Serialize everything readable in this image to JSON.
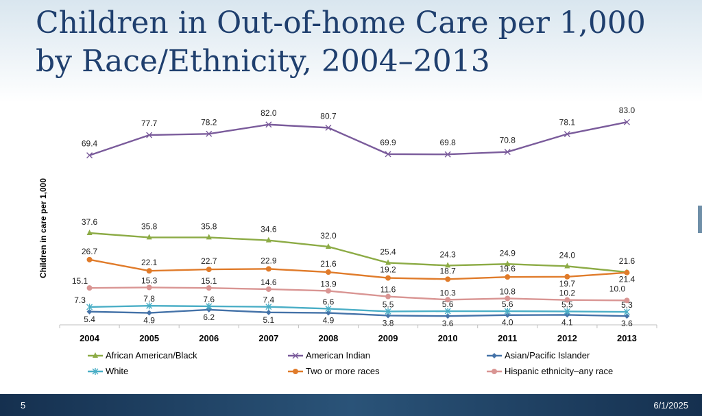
{
  "slide": {
    "title_line1": "Children in Out-of-home Care per 1,000",
    "title_line2": "by Race/Ethnicity, 2004–2013",
    "page_number": "5",
    "date": "6/1/2025"
  },
  "chart_data": {
    "type": "line",
    "title": "Children in Out-of-home Care per 1,000 by Race/Ethnicity, 2004–2013",
    "xlabel": "",
    "ylabel": "Children in care per 1,000",
    "ylim": [
      0,
      90
    ],
    "grid": false,
    "legend_position": "bottom",
    "categories": [
      "2004",
      "2005",
      "2006",
      "2007",
      "2008",
      "2009",
      "2010",
      "2011",
      "2012",
      "2013"
    ],
    "series": [
      {
        "name": "African American/Black",
        "color": "#8cab45",
        "marker": "triangle",
        "values": [
          37.6,
          35.8,
          35.8,
          34.6,
          32.0,
          25.4,
          24.3,
          24.9,
          24.0,
          21.6
        ],
        "labels": [
          "37.6",
          "35.8",
          "35.8",
          "34.6",
          "32.0",
          "25.4",
          "24.3",
          "24.9",
          "24.0",
          "21.6"
        ]
      },
      {
        "name": "American Indian",
        "color": "#7a5b9b",
        "marker": "x",
        "values": [
          69.4,
          77.7,
          78.2,
          82.0,
          80.7,
          69.9,
          69.8,
          70.8,
          78.1,
          83.0
        ],
        "labels": [
          "69.4",
          "77.7",
          "78.2",
          "82.0",
          "80.7",
          "69.9",
          "69.8",
          "70.8",
          "78.1",
          "83.0"
        ]
      },
      {
        "name": "Asian/Pacific Islander",
        "color": "#4472a8",
        "marker": "diamond",
        "values": [
          5.4,
          4.9,
          6.2,
          5.1,
          4.9,
          3.8,
          3.6,
          4.0,
          4.1,
          3.6
        ],
        "labels": [
          "5.4",
          "4.9",
          "6.2",
          "5.1",
          "4.9",
          "3.8",
          "3.6",
          "4.0",
          "4.1",
          "3.6"
        ]
      },
      {
        "name": "White",
        "color": "#4aaec6",
        "marker": "star",
        "values": [
          7.3,
          7.8,
          7.6,
          7.4,
          6.6,
          5.5,
          5.6,
          5.6,
          5.5,
          5.3
        ],
        "labels": [
          "7.3",
          "7.8",
          "7.6",
          "7.4",
          "6.6",
          "5.5",
          "5.6",
          "5.6",
          "5.5",
          "5.3"
        ]
      },
      {
        "name": "Two or more races",
        "color": "#e07b2a",
        "marker": "circle",
        "values": [
          26.7,
          22.1,
          22.7,
          22.9,
          21.6,
          19.2,
          18.7,
          19.6,
          19.7,
          21.4
        ],
        "labels": [
          "26.7",
          "22.1",
          "22.7",
          "22.9",
          "21.6",
          "19.2",
          "18.7",
          "19.6",
          "19.7",
          "21.4"
        ]
      },
      {
        "name": "Hispanic ethnicity–any race",
        "color": "#d99593",
        "marker": "circle",
        "values": [
          15.1,
          15.3,
          15.1,
          14.6,
          13.9,
          11.6,
          10.3,
          10.8,
          10.2,
          10.0
        ],
        "labels": [
          "15.1",
          "15.3",
          "15.1",
          "14.6",
          "13.9",
          "11.6",
          "10.3",
          "10.8",
          "10.2",
          "10.0"
        ]
      }
    ]
  }
}
